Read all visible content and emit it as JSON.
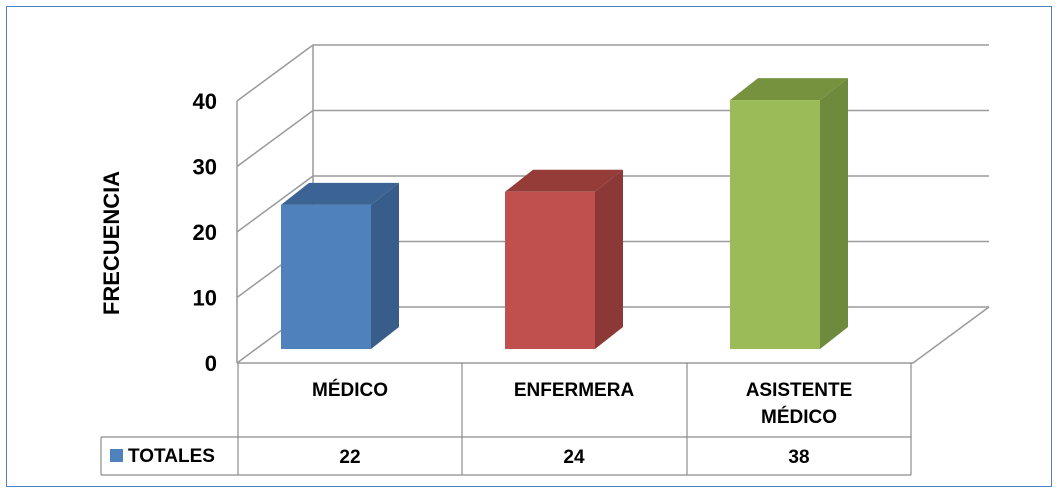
{
  "chart_data": {
    "type": "bar",
    "three_d": true,
    "categories": [
      "MÉDICO",
      "ENFERMERA",
      "ASISTENTE MÉDICO"
    ],
    "category_lines": [
      [
        "MÉDICO"
      ],
      [
        "ENFERMERA"
      ],
      [
        "ASISTENTE",
        "MÉDICO"
      ]
    ],
    "series": [
      {
        "name": "TOTALES",
        "values": [
          22,
          24,
          38
        ]
      }
    ],
    "bar_colors": [
      {
        "front": "#4f81bd",
        "side": "#385d8a",
        "top": "#3b6494"
      },
      {
        "front": "#c0504d",
        "side": "#8c3836",
        "top": "#953c39"
      },
      {
        "front": "#9bbb59",
        "side": "#6e8a3c",
        "top": "#77923f"
      }
    ],
    "legend_color": "#4f81bd",
    "ylabel": "FRECUENCIA",
    "yticks": [
      0,
      10,
      20,
      30,
      40
    ],
    "ylim": [
      0,
      40
    ],
    "grid": true,
    "data_table": true,
    "legend": "data-table"
  }
}
